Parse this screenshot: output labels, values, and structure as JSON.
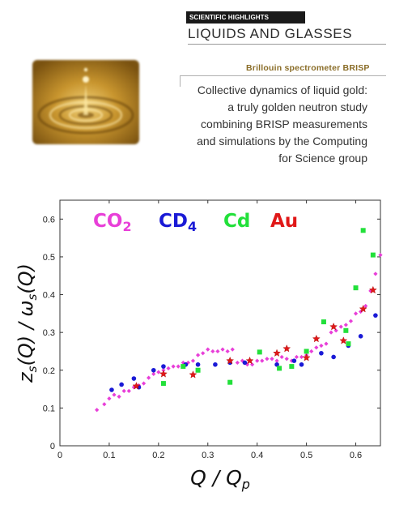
{
  "header": {
    "section_tag": "SCIENTIFIC HIGHLIGHTS",
    "section_title": "LIQUIDS AND GLASSES",
    "instrument": "Brillouin spectrometer BRISP",
    "description_lines": [
      "Collective dynamics of liquid gold:",
      "a truly golden neutron study",
      "combining BRISP measurements",
      "and simulations by the Computing",
      "for Science group"
    ]
  },
  "colors": {
    "CO2": "#e83fd8",
    "CD4": "#1a1ad6",
    "Cd": "#22e03a",
    "Au": "#e01818",
    "brand_gold": "#8a6d28"
  },
  "chart_data": {
    "type": "scatter",
    "xlabel": "Q / Qp",
    "ylabel": "zs(Q) / ωs(Q)",
    "xlim": [
      0,
      0.65
    ],
    "ylim": [
      0,
      0.65
    ],
    "xticks": [
      "0",
      "0.1",
      "0.2",
      "0.3",
      "0.4",
      "0.5",
      "0.6"
    ],
    "yticks": [
      "0",
      "0.1",
      "0.2",
      "0.3",
      "0.4",
      "0.5",
      "0.6"
    ],
    "grid": false,
    "legend_position": "top-left, inside",
    "series": [
      {
        "name": "CO2",
        "marker": "diamond",
        "color": "#e83fd8",
        "points": [
          [
            0.075,
            0.095
          ],
          [
            0.09,
            0.11
          ],
          [
            0.1,
            0.125
          ],
          [
            0.11,
            0.135
          ],
          [
            0.12,
            0.13
          ],
          [
            0.13,
            0.145
          ],
          [
            0.14,
            0.145
          ],
          [
            0.15,
            0.155
          ],
          [
            0.16,
            0.16
          ],
          [
            0.17,
            0.165
          ],
          [
            0.18,
            0.18
          ],
          [
            0.19,
            0.19
          ],
          [
            0.2,
            0.195
          ],
          [
            0.21,
            0.2
          ],
          [
            0.22,
            0.205
          ],
          [
            0.23,
            0.21
          ],
          [
            0.24,
            0.21
          ],
          [
            0.25,
            0.22
          ],
          [
            0.26,
            0.22
          ],
          [
            0.27,
            0.225
          ],
          [
            0.28,
            0.24
          ],
          [
            0.29,
            0.245
          ],
          [
            0.3,
            0.255
          ],
          [
            0.31,
            0.25
          ],
          [
            0.32,
            0.25
          ],
          [
            0.33,
            0.255
          ],
          [
            0.34,
            0.25
          ],
          [
            0.35,
            0.255
          ],
          [
            0.36,
            0.22
          ],
          [
            0.37,
            0.225
          ],
          [
            0.38,
            0.215
          ],
          [
            0.39,
            0.215
          ],
          [
            0.4,
            0.225
          ],
          [
            0.41,
            0.225
          ],
          [
            0.42,
            0.23
          ],
          [
            0.43,
            0.23
          ],
          [
            0.44,
            0.225
          ],
          [
            0.45,
            0.235
          ],
          [
            0.46,
            0.23
          ],
          [
            0.47,
            0.225
          ],
          [
            0.48,
            0.235
          ],
          [
            0.49,
            0.235
          ],
          [
            0.5,
            0.24
          ],
          [
            0.51,
            0.25
          ],
          [
            0.52,
            0.26
          ],
          [
            0.53,
            0.265
          ],
          [
            0.54,
            0.27
          ],
          [
            0.55,
            0.3
          ],
          [
            0.56,
            0.305
          ],
          [
            0.57,
            0.315
          ],
          [
            0.58,
            0.32
          ],
          [
            0.59,
            0.33
          ],
          [
            0.6,
            0.35
          ],
          [
            0.61,
            0.355
          ],
          [
            0.62,
            0.37
          ],
          [
            0.63,
            0.41
          ],
          [
            0.64,
            0.455
          ],
          [
            0.65,
            0.505
          ]
        ]
      },
      {
        "name": "CD4",
        "marker": "circle",
        "color": "#1a1ad6",
        "points": [
          [
            0.105,
            0.148
          ],
          [
            0.125,
            0.162
          ],
          [
            0.15,
            0.178
          ],
          [
            0.16,
            0.155
          ],
          [
            0.19,
            0.2
          ],
          [
            0.21,
            0.21
          ],
          [
            0.255,
            0.215
          ],
          [
            0.28,
            0.215
          ],
          [
            0.315,
            0.215
          ],
          [
            0.345,
            0.22
          ],
          [
            0.375,
            0.22
          ],
          [
            0.44,
            0.215
          ],
          [
            0.475,
            0.225
          ],
          [
            0.49,
            0.215
          ],
          [
            0.53,
            0.245
          ],
          [
            0.555,
            0.235
          ],
          [
            0.585,
            0.265
          ],
          [
            0.61,
            0.29
          ],
          [
            0.64,
            0.345
          ]
        ]
      },
      {
        "name": "Cd",
        "marker": "square",
        "color": "#22e03a",
        "points": [
          [
            0.21,
            0.165
          ],
          [
            0.25,
            0.21
          ],
          [
            0.28,
            0.2
          ],
          [
            0.345,
            0.168
          ],
          [
            0.405,
            0.248
          ],
          [
            0.445,
            0.205
          ],
          [
            0.47,
            0.21
          ],
          [
            0.5,
            0.25
          ],
          [
            0.535,
            0.328
          ],
          [
            0.58,
            0.305
          ],
          [
            0.585,
            0.27
          ],
          [
            0.6,
            0.418
          ],
          [
            0.615,
            0.57
          ],
          [
            0.635,
            0.505
          ]
        ]
      },
      {
        "name": "Au",
        "marker": "star",
        "color": "#e01818",
        "points": [
          [
            0.155,
            0.158
          ],
          [
            0.21,
            0.19
          ],
          [
            0.27,
            0.188
          ],
          [
            0.345,
            0.225
          ],
          [
            0.385,
            0.225
          ],
          [
            0.44,
            0.245
          ],
          [
            0.46,
            0.257
          ],
          [
            0.5,
            0.233
          ],
          [
            0.52,
            0.283
          ],
          [
            0.555,
            0.315
          ],
          [
            0.575,
            0.278
          ],
          [
            0.615,
            0.362
          ],
          [
            0.635,
            0.412
          ]
        ]
      }
    ]
  }
}
